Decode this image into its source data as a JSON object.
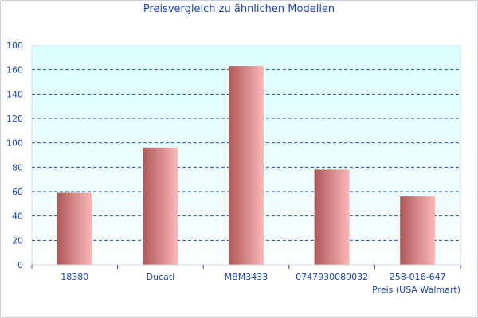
{
  "chart_data": {
    "type": "bar",
    "title": "Preisvergleich zu ähnlichen Modellen",
    "xlabel": "Preis (USA Walmart)",
    "ylabel": "",
    "categories": [
      "18380",
      "Ducati",
      "MBM3433",
      "0747930089032",
      "258-016-647"
    ],
    "values": [
      59,
      96,
      163,
      78,
      56
    ],
    "ylim": [
      0,
      180
    ],
    "yticks": [
      0,
      20,
      40,
      60,
      80,
      100,
      120,
      140,
      160,
      180
    ],
    "grid": true,
    "legend": "none",
    "colors": {
      "bar_dark": "#b05858",
      "bar_light": "#fbb8b8",
      "grid": "#2050c8",
      "text": "#1a44c4",
      "bg_top": "#dcffff",
      "bg_bottom": "#fafefe"
    }
  }
}
